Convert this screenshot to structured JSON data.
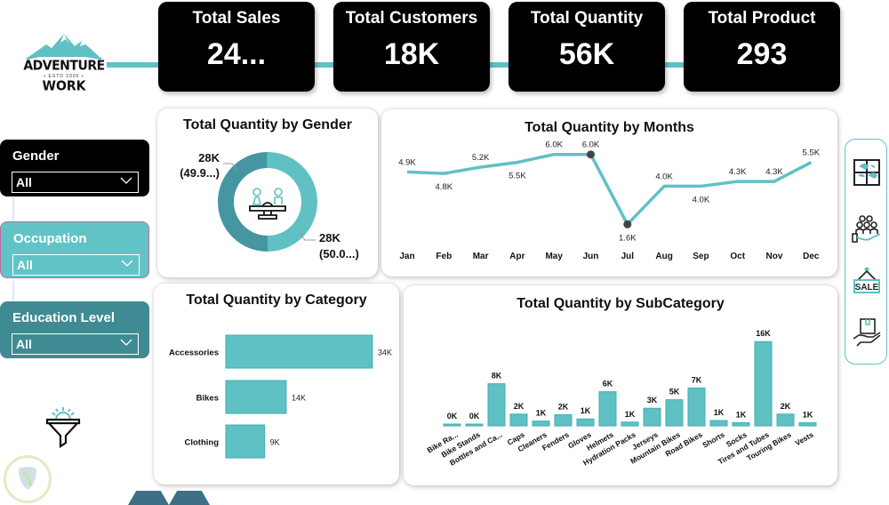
{
  "brand": {
    "line1": "ADVENTURE",
    "tagline": "• ESTD 2000 •",
    "line2": "WORK"
  },
  "kpis": [
    {
      "title": "Total Sales",
      "value": "24..."
    },
    {
      "title": "Total Customers",
      "value": "18K"
    },
    {
      "title": "Total Quantity",
      "value": "56K"
    },
    {
      "title": "Total Product",
      "value": "293"
    }
  ],
  "slicers": [
    {
      "label": "Gender",
      "value": "All"
    },
    {
      "label": "Occupation",
      "value": "All"
    },
    {
      "label": "Education Level",
      "value": "All"
    }
  ],
  "colors": {
    "teal": "#5fc1c4",
    "dark_teal": "#4596a1",
    "slicer_teal": "#62c3c6",
    "slicer_dark": "#3f8b93",
    "black": "#000000"
  },
  "nav_icons": [
    "dashboard-icon",
    "customers-icon",
    "sale-icon",
    "product-icon"
  ],
  "nav_labels": {
    "sale": "SALE"
  },
  "chart_data": [
    {
      "type": "pie",
      "title": "Total Quantity by Gender",
      "slices": [
        {
          "label": "28K",
          "pct_label": "(49.9...)",
          "value": 49.9
        },
        {
          "label": "28K",
          "pct_label": "(50.0...)",
          "value": 50.1
        }
      ]
    },
    {
      "type": "line",
      "title": "Total Quantity by Months",
      "categories": [
        "Jan",
        "Feb",
        "Mar",
        "Apr",
        "May",
        "Jun",
        "Jul",
        "Aug",
        "Sep",
        "Oct",
        "Nov",
        "Dec"
      ],
      "values": [
        4.9,
        4.8,
        5.2,
        5.5,
        6.0,
        6.0,
        1.6,
        4.0,
        4.0,
        4.3,
        4.3,
        5.5
      ],
      "labels": [
        "4.9K",
        "4.8K",
        "5.2K",
        "5.5K",
        "6.0K",
        "6.0K",
        "1.6K",
        "4.0K",
        "4.0K",
        "4.3K",
        "4.3K",
        "5.5K"
      ],
      "unit": "K",
      "ylim": [
        1.0,
        6.6
      ],
      "highlight": [
        "Jun",
        "Jul"
      ]
    },
    {
      "type": "bar",
      "orientation": "horizontal",
      "title": "Total Quantity by Category",
      "categories": [
        "Accessories",
        "Bikes",
        "Clothing"
      ],
      "values": [
        34,
        14,
        9
      ],
      "labels": [
        "34K",
        "14K",
        "9K"
      ],
      "xlim": [
        0,
        36
      ]
    },
    {
      "type": "bar",
      "title": "Total Quantity by SubCategory",
      "categories": [
        "Bike Ra...",
        "Bike Stands",
        "Bottles and Ca...",
        "Caps",
        "Cleaners",
        "Fenders",
        "Gloves",
        "Helmets",
        "Hydration Packs",
        "Jerseys",
        "Mountain Bikes",
        "Road Bikes",
        "Shorts",
        "Socks",
        "Tires and Tubes",
        "Touring Bikes",
        "Vests"
      ],
      "values": [
        0.3,
        0.2,
        7.9,
        2.2,
        0.9,
        2.1,
        1.3,
        6.4,
        0.7,
        3.3,
        4.9,
        7.1,
        1.0,
        0.6,
        15.8,
        2.2,
        0.6
      ],
      "labels": [
        "0K",
        "0K",
        "8K",
        "2K",
        "1K",
        "2K",
        "1K",
        "6K",
        "1K",
        "3K",
        "5K",
        "7K",
        "1K",
        "1K",
        "16K",
        "2K",
        "1K"
      ],
      "ylim": [
        0,
        16
      ]
    }
  ]
}
